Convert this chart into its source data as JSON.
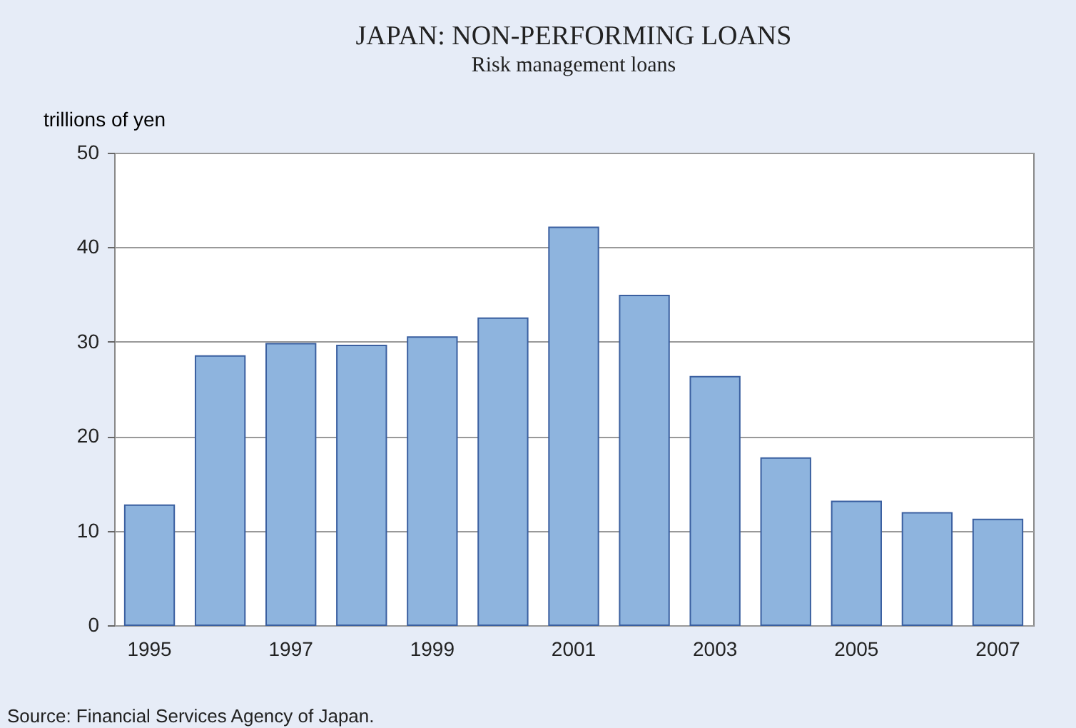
{
  "chart_data": {
    "type": "bar",
    "title": "JAPAN: NON-PERFORMING LOANS",
    "subtitle": "Risk management loans",
    "ylabel": "trillions of yen",
    "categories": [
      "1995",
      null,
      "1997",
      null,
      "1999",
      null,
      "2001",
      null,
      "2003",
      null,
      "2005",
      null,
      "2007"
    ],
    "values": [
      12.7,
      28.5,
      29.8,
      29.6,
      30.5,
      32.5,
      42.1,
      34.9,
      26.3,
      17.7,
      13.1,
      11.9,
      11.2
    ],
    "color": "#8eb4de",
    "ylim": [
      0,
      50
    ],
    "yticks": [
      0,
      10,
      20,
      30,
      40,
      50
    ],
    "grid": "y",
    "annotations": [
      "Source: Financial Services Agency of Japan."
    ]
  }
}
